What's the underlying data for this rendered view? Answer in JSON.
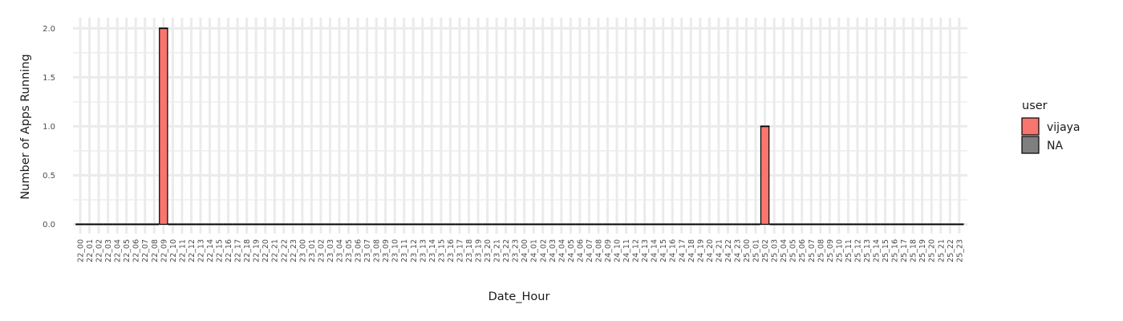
{
  "chart_data": {
    "type": "bar",
    "xlabel": "Date_Hour",
    "ylabel": "Number of Apps Running",
    "ylim": [
      0,
      2.0
    ],
    "yticks": [
      0.0,
      0.5,
      1.0,
      1.5,
      2.0
    ],
    "ytick_labels": [
      "0.0",
      "0.5",
      "1.0",
      "1.5",
      "2.0"
    ],
    "categories": [
      "22_00",
      "22_01",
      "22_02",
      "22_03",
      "22_04",
      "22_05",
      "22_06",
      "22_07",
      "22_08",
      "22_09",
      "22_10",
      "22_11",
      "22_12",
      "22_13",
      "22_14",
      "22_15",
      "22_16",
      "22_17",
      "22_18",
      "22_19",
      "22_20",
      "22_21",
      "22_22",
      "22_23",
      "23_00",
      "23_01",
      "23_02",
      "23_03",
      "23_04",
      "23_05",
      "23_06",
      "23_07",
      "23_08",
      "23_09",
      "23_10",
      "23_11",
      "23_12",
      "23_13",
      "23_14",
      "23_15",
      "23_16",
      "23_17",
      "23_18",
      "23_19",
      "23_20",
      "23_21",
      "23_22",
      "23_23",
      "24_00",
      "24_01",
      "24_02",
      "24_03",
      "24_04",
      "24_05",
      "24_06",
      "24_07",
      "24_08",
      "24_09",
      "24_10",
      "24_11",
      "24_12",
      "24_13",
      "24_14",
      "24_15",
      "24_16",
      "24_17",
      "24_18",
      "24_19",
      "24_20",
      "24_21",
      "24_22",
      "24_23",
      "25_00",
      "25_01",
      "25_02",
      "25_03",
      "25_04",
      "25_05",
      "25_06",
      "25_07",
      "25_08",
      "25_09",
      "25_10",
      "25_11",
      "25_12",
      "25_13",
      "25_14",
      "25_15",
      "25_16",
      "25_17",
      "25_18",
      "25_19",
      "25_20",
      "25_21",
      "25_22",
      "25_23"
    ],
    "series": [
      {
        "name": "vijaya",
        "color": "#F8766D",
        "values": [
          0,
          0,
          0,
          0,
          0,
          0,
          0,
          0,
          0,
          2,
          0,
          0,
          0,
          0,
          0,
          0,
          0,
          0,
          0,
          0,
          0,
          0,
          0,
          0,
          0,
          0,
          0,
          0,
          0,
          0,
          0,
          0,
          0,
          0,
          0,
          0,
          0,
          0,
          0,
          0,
          0,
          0,
          0,
          0,
          0,
          0,
          0,
          0,
          0,
          0,
          0,
          0,
          0,
          0,
          0,
          0,
          0,
          0,
          0,
          0,
          0,
          0,
          0,
          0,
          0,
          0,
          0,
          0,
          0,
          0,
          0,
          0,
          0,
          0,
          1,
          0,
          0,
          0,
          0,
          0,
          0,
          0,
          0,
          0,
          0,
          0,
          0,
          0,
          0,
          0,
          0,
          0,
          0,
          0,
          0,
          0
        ]
      },
      {
        "name": "NA",
        "color": "#7F7F7F",
        "values": [
          0,
          0,
          0,
          0,
          0,
          0,
          0,
          0,
          0,
          0,
          0,
          0,
          0,
          0,
          0,
          0,
          0,
          0,
          0,
          0,
          0,
          0,
          0,
          0,
          0,
          0,
          0,
          0,
          0,
          0,
          0,
          0,
          0,
          0,
          0,
          0,
          0,
          0,
          0,
          0,
          0,
          0,
          0,
          0,
          0,
          0,
          0,
          0,
          0,
          0,
          0,
          0,
          0,
          0,
          0,
          0,
          0,
          0,
          0,
          0,
          0,
          0,
          0,
          0,
          0,
          0,
          0,
          0,
          0,
          0,
          0,
          0,
          0,
          0,
          0,
          0,
          0,
          0,
          0,
          0,
          0,
          0,
          0,
          0,
          0,
          0,
          0,
          0,
          0,
          0,
          0,
          0,
          0,
          0,
          0,
          0
        ]
      }
    ],
    "legend": {
      "title": "user",
      "position": "right",
      "entries": [
        {
          "label": "vijaya",
          "color": "#F8766D"
        },
        {
          "label": "NA",
          "color": "#7F7F7F"
        }
      ]
    },
    "grid": true,
    "panel_background": "#ffffff",
    "grid_color": "#EBEBEB"
  }
}
